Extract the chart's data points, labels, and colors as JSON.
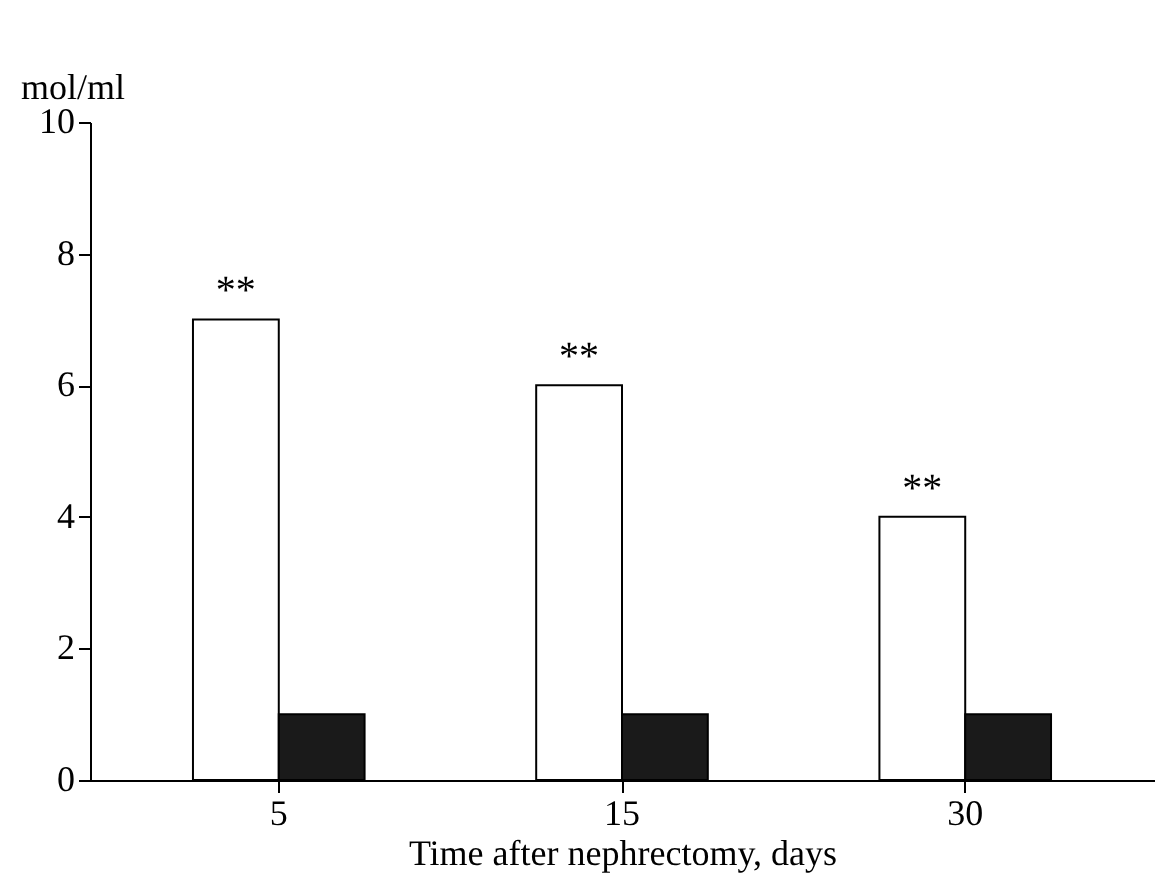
{
  "chart_data": {
    "type": "bar",
    "ylabel": "mol/ml",
    "xlabel": "Time after nephrectomy, days",
    "categories": [
      "5",
      "15",
      "30"
    ],
    "series": [
      {
        "color": "#ffffff",
        "values": [
          7,
          6,
          4
        ]
      },
      {
        "color": "#1a1a1a",
        "values": [
          1,
          1,
          1
        ]
      }
    ],
    "ylim": [
      0,
      10
    ],
    "yticks": [
      0,
      2,
      4,
      6,
      8,
      10
    ],
    "grid": false,
    "legend": false,
    "annotations": [
      {
        "text": "**",
        "x": "5",
        "y": 7
      },
      {
        "text": "**",
        "x": "15",
        "y": 6
      },
      {
        "text": "**",
        "x": "30",
        "y": 4
      }
    ]
  }
}
